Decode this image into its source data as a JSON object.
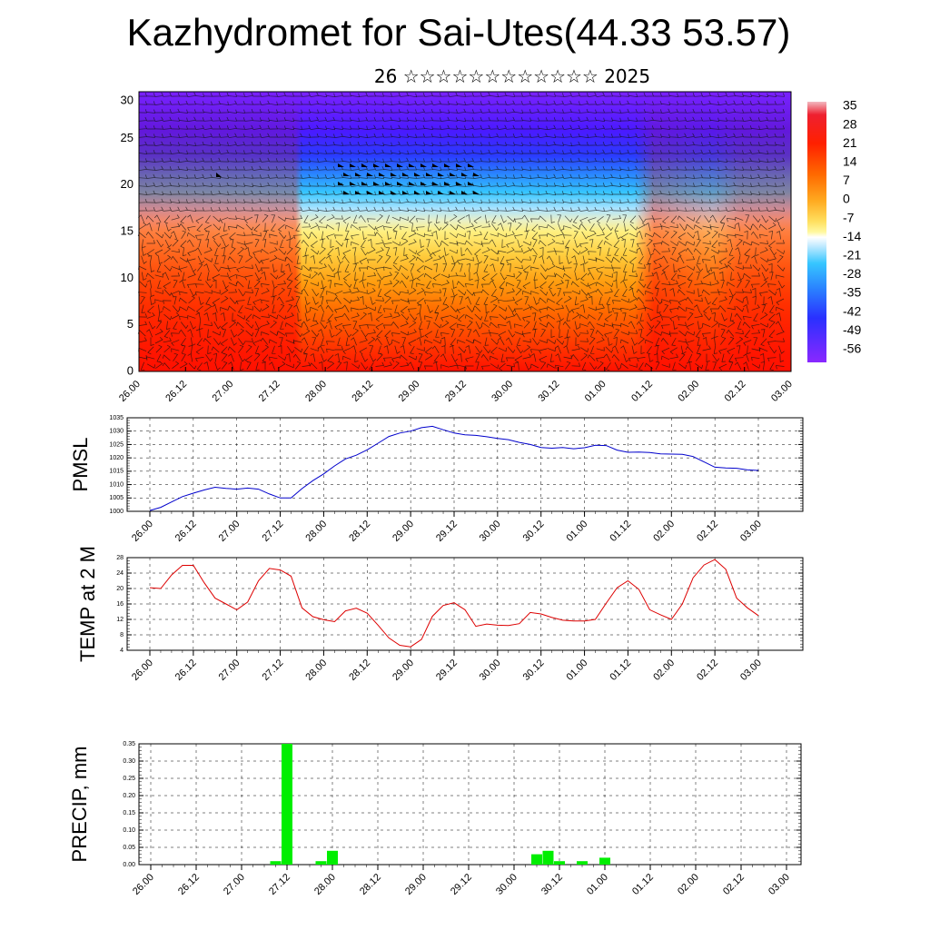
{
  "title": "Kazhydromet for Sai-Utes(44.33 53.57)",
  "subtitle": "26 ☆☆☆☆☆☆☆☆☆☆☆☆ 2025",
  "time_ticks": [
    "26.00",
    "26.12",
    "27.00",
    "27.12",
    "28.00",
    "28.12",
    "29.00",
    "29.12",
    "30.00",
    "30.12",
    "01.00",
    "01.12",
    "02.00",
    "02.12",
    "03.00"
  ],
  "chart_data": [
    {
      "type": "heatmap",
      "title": "",
      "ylabel": "",
      "ylim": [
        0,
        30
      ],
      "y_ticks": [
        "0",
        "5",
        "10",
        "15",
        "20",
        "25",
        "30"
      ],
      "x_ticks": [
        "26.00",
        "26.12",
        "27.00",
        "27.12",
        "28.00",
        "28.12",
        "29.00",
        "29.12",
        "30.00",
        "30.12",
        "01.00",
        "01.12",
        "02.00",
        "02.12",
        "03.00"
      ],
      "colorbar_labels": [
        "35",
        "28",
        "21",
        "14",
        "7",
        "0",
        "-7",
        "-14",
        "-21",
        "-28",
        "-35",
        "-42",
        "-49",
        "-56"
      ],
      "colors": {
        "warm": "#ff1a00",
        "mid": "#fff37a",
        "cool": "#36c6ff",
        "cold": "#6a18ff"
      },
      "overlay": "wind barbs"
    },
    {
      "type": "line",
      "ylabel": "PMSL",
      "ylim": [
        1000,
        1035
      ],
      "y_ticks": [
        "1000",
        "1005",
        "1010",
        "1015",
        "1020",
        "1025",
        "1030",
        "1035"
      ],
      "x": [
        "26.00",
        "26.03",
        "26.06",
        "26.09",
        "26.12",
        "26.15",
        "26.18",
        "26.21",
        "27.00",
        "27.03",
        "27.06",
        "27.09",
        "27.12",
        "27.15",
        "27.18",
        "27.21",
        "28.00",
        "28.03",
        "28.06",
        "28.09",
        "28.12",
        "28.15",
        "28.18",
        "28.21",
        "29.00",
        "29.03",
        "29.06",
        "29.09",
        "29.12",
        "29.15",
        "29.18",
        "29.21",
        "30.00",
        "30.03",
        "30.06",
        "30.09",
        "30.12",
        "30.15",
        "30.18",
        "30.21",
        "01.00",
        "01.03",
        "01.06",
        "01.09",
        "01.12",
        "01.15",
        "01.18",
        "01.21",
        "02.00",
        "02.03",
        "02.06",
        "02.09",
        "02.12",
        "02.15",
        "02.18",
        "02.21",
        "03.00"
      ],
      "series": [
        {
          "color": "#0000cc",
          "values": [
            1000.3,
            1001.5,
            1003.5,
            1005.5,
            1006.8,
            1008,
            1009,
            1008.6,
            1008.3,
            1008.7,
            1008.3,
            1006.5,
            1005,
            1005,
            1008.5,
            1011.5,
            1014,
            1017,
            1019.6,
            1021,
            1023,
            1025.5,
            1028,
            1029.3,
            1030,
            1031.3,
            1031.8,
            1030.5,
            1029.3,
            1028.6,
            1028.4,
            1027.9,
            1027.3,
            1026.8,
            1025.8,
            1025,
            1023.9,
            1023.6,
            1023.9,
            1023.4,
            1023.8,
            1024.7,
            1024.6,
            1022.9,
            1022.1,
            1022.2,
            1022,
            1021.5,
            1021.4,
            1021.3,
            1020.5,
            1018.5,
            1016.5,
            1016.2,
            1016.1,
            1015.5,
            1015.3
          ]
        }
      ]
    },
    {
      "type": "line",
      "ylabel": "TEMP at 2 M",
      "ylim": [
        4,
        28
      ],
      "y_ticks": [
        "4",
        "8",
        "12",
        "16",
        "20",
        "24",
        "28"
      ],
      "x": [
        "26.00",
        "26.03",
        "26.06",
        "26.09",
        "26.12",
        "26.15",
        "26.18",
        "26.21",
        "27.00",
        "27.03",
        "27.06",
        "27.09",
        "27.12",
        "27.15",
        "27.18",
        "27.21",
        "28.00",
        "28.03",
        "28.06",
        "28.09",
        "28.12",
        "28.15",
        "28.18",
        "28.21",
        "29.00",
        "29.03",
        "29.06",
        "29.09",
        "29.12",
        "29.15",
        "29.18",
        "29.21",
        "30.00",
        "30.03",
        "30.06",
        "30.09",
        "30.12",
        "30.15",
        "30.18",
        "30.21",
        "01.00",
        "01.03",
        "01.06",
        "01.09",
        "01.12",
        "01.15",
        "01.18",
        "01.21",
        "02.00",
        "02.03",
        "02.06",
        "02.09",
        "02.12",
        "02.15",
        "02.18",
        "02.21",
        "03.00"
      ],
      "series": [
        {
          "color": "#dd0000",
          "values": [
            20.2,
            20,
            23.5,
            26,
            26,
            21.5,
            17.5,
            16,
            14.5,
            16.5,
            22,
            25.2,
            24.8,
            23.2,
            15,
            12.7,
            11.9,
            11.4,
            14.2,
            14.9,
            13.6,
            10.5,
            7.2,
            5.3,
            4.9,
            6.8,
            12.8,
            15.6,
            16.3,
            14.5,
            10.2,
            10.8,
            10.5,
            10.4,
            10.9,
            13.8,
            13.4,
            12.5,
            11.8,
            11.6,
            11.6,
            12,
            16.2,
            20.2,
            22,
            19.8,
            14.5,
            13.2,
            12,
            16,
            22.8,
            26.1,
            27.5,
            25,
            17.5,
            15,
            13
          ]
        }
      ]
    },
    {
      "type": "bar",
      "ylabel": "PRECIP, mm",
      "ylim": [
        0,
        0.35
      ],
      "y_ticks": [
        "0.00",
        "0.05",
        "0.10",
        "0.15",
        "0.20",
        "0.25",
        "0.30",
        "0.35"
      ],
      "x_ticks": [
        "26.00",
        "26.12",
        "27.00",
        "27.12",
        "28.00",
        "28.12",
        "29.00",
        "29.12",
        "30.00",
        "30.12",
        "01.00",
        "01.12",
        "02.00",
        "02.12",
        "03.00"
      ],
      "bar_color": "#00ee00",
      "bars": [
        {
          "x": "27.09",
          "value": 0.01
        },
        {
          "x": "27.12",
          "value": 0.35
        },
        {
          "x": "27.21",
          "value": 0.01
        },
        {
          "x": "28.00",
          "value": 0.04
        },
        {
          "x": "30.06",
          "value": 0.03
        },
        {
          "x": "30.09",
          "value": 0.04
        },
        {
          "x": "30.12",
          "value": 0.01
        },
        {
          "x": "30.18",
          "value": 0.01
        },
        {
          "x": "01.00",
          "value": 0.02
        }
      ]
    }
  ]
}
